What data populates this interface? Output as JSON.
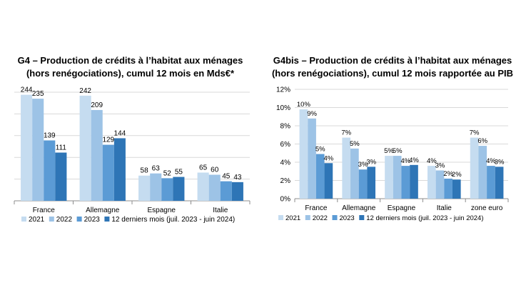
{
  "chart_data": [
    {
      "type": "bar",
      "title": "G4 – Production de crédits à l’habitat aux ménages (hors renégociations), cumul 12 mois en Mds€*",
      "categories": [
        "France",
        "Allemagne",
        "Espagne",
        "Italie"
      ],
      "series": [
        {
          "name": "2021",
          "values": [
            244,
            242,
            58,
            65
          ],
          "labels": [
            "244",
            "242",
            "58",
            "65"
          ]
        },
        {
          "name": "2022",
          "values": [
            235,
            209,
            63,
            60
          ],
          "labels": [
            "235",
            "209",
            "63",
            "60"
          ]
        },
        {
          "name": "2023",
          "values": [
            139,
            129,
            52,
            45
          ],
          "labels": [
            "139",
            "129",
            "52",
            "45"
          ]
        },
        {
          "name": "12 derniers mois (juil. 2023 - juin 2024)",
          "values": [
            111,
            144,
            55,
            43
          ],
          "labels": [
            "111",
            "144",
            "55",
            "43"
          ]
        }
      ],
      "ylim": [
        0,
        250
      ],
      "y_ticks_visible": false,
      "grid": true,
      "legend": "bottom",
      "colors": [
        "#c5dcf0",
        "#9dc3e6",
        "#5b9bd5",
        "#2e75b6"
      ]
    },
    {
      "type": "bar",
      "title": "G4bis – Production de crédits à l’habitat aux ménages (hors renégociations), cumul 12 mois rapportée au PIB",
      "categories": [
        "France",
        "Allemagne",
        "Espagne",
        "Italie",
        "zone euro"
      ],
      "series": [
        {
          "name": "2021",
          "values": [
            9.8,
            6.7,
            4.7,
            3.6,
            6.7
          ],
          "labels": [
            "10%",
            "7%",
            "5%",
            "4%",
            "7%"
          ]
        },
        {
          "name": "2022",
          "values": [
            8.8,
            5.5,
            4.7,
            3.1,
            5.8
          ],
          "labels": [
            "9%",
            "5%",
            "5%",
            "3%",
            "6%"
          ]
        },
        {
          "name": "2023",
          "values": [
            4.9,
            3.2,
            3.6,
            2.2,
            3.6
          ],
          "labels": [
            "5%",
            "3%",
            "4%",
            "2%",
            "4%"
          ]
        },
        {
          "name": "12 derniers mois (juil. 2023 - juin 2024)",
          "values": [
            3.9,
            3.5,
            3.7,
            2.1,
            3.5
          ],
          "labels": [
            "4%",
            "3%",
            "4%",
            "2%",
            "3%"
          ]
        }
      ],
      "ylim": [
        0,
        12
      ],
      "y_ticks": [
        "0%",
        "2%",
        "4%",
        "6%",
        "8%",
        "10%",
        "12%"
      ],
      "grid": true,
      "legend": "bottom",
      "colors": [
        "#c5dcf0",
        "#9dc3e6",
        "#5b9bd5",
        "#2e75b6"
      ]
    }
  ]
}
